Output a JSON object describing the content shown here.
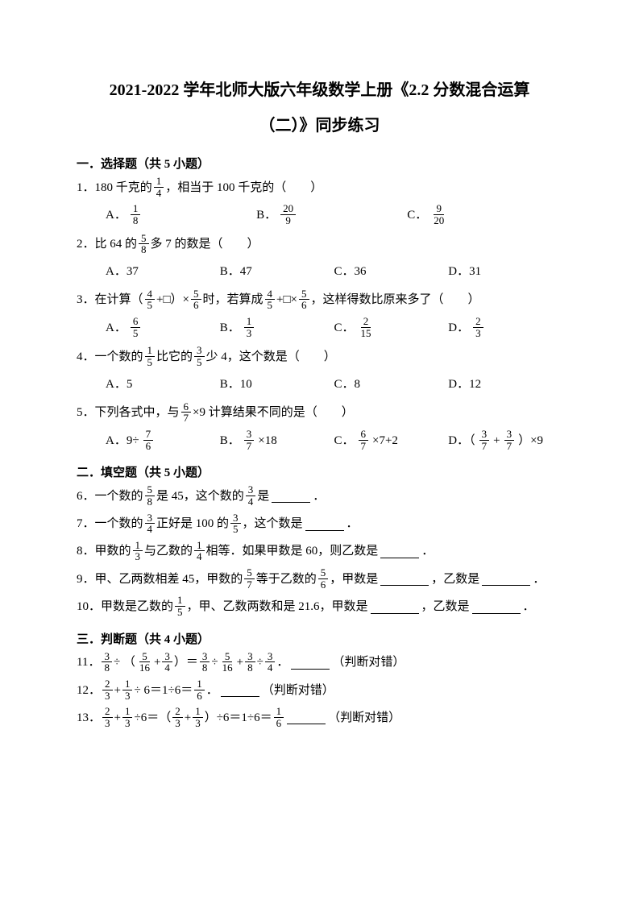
{
  "title_line1": "2021-2022 学年北师大版六年级数学上册《2.2 分数混合运算",
  "title_line2": "（二）》同步练习",
  "section1": "一．选择题（共 5 小题）",
  "section2": "二．填空题（共 5 小题）",
  "section3": "三．判断题（共 4 小题）",
  "judge_label": "（判断对错）",
  "q1": {
    "pre": "1．180 千克的",
    "f": {
      "n": "1",
      "d": "4"
    },
    "post": "，相当于 100 千克的（　　）",
    "A_f": {
      "n": "1",
      "d": "8"
    },
    "B_f": {
      "n": "20",
      "d": "9"
    },
    "C_f": {
      "n": "9",
      "d": "20"
    },
    "A": "A．",
    "B": "B．",
    "C": "C．"
  },
  "q2": {
    "pre": "2．比 64 的",
    "f": {
      "n": "5",
      "d": "8"
    },
    "post": "多 7 的数是（　　）",
    "A": "A．37",
    "B": "B．47",
    "C": "C．36",
    "D": "D．31"
  },
  "q3": {
    "pre": "3．在计算（",
    "f1": {
      "n": "4",
      "d": "5"
    },
    "mid1": "+□）×",
    "f2": {
      "n": "5",
      "d": "6"
    },
    "mid2": "时，若算成",
    "f3": {
      "n": "4",
      "d": "5"
    },
    "mid3": "+□×",
    "f4": {
      "n": "5",
      "d": "6"
    },
    "post": "，这样得数比原来多了（　　）",
    "A_f": {
      "n": "6",
      "d": "5"
    },
    "B_f": {
      "n": "1",
      "d": "3"
    },
    "C_f": {
      "n": "2",
      "d": "15"
    },
    "D_f": {
      "n": "2",
      "d": "3"
    },
    "A": "A．",
    "B": "B．",
    "C": "C．",
    "D": "D．"
  },
  "q4": {
    "pre": "4．一个数的",
    "f1": {
      "n": "1",
      "d": "5"
    },
    "mid": "比它的",
    "f2": {
      "n": "3",
      "d": "5"
    },
    "post": "少 4，这个数是（　　）",
    "A": "A．5",
    "B": "B．10",
    "C": "C．8",
    "D": "D．12"
  },
  "q5": {
    "pre": "5．下列各式中，与",
    "f": {
      "n": "6",
      "d": "7"
    },
    "post": "×9 计算结果不同的是（　　）",
    "A_pre": "A．9÷",
    "A_f": {
      "n": "7",
      "d": "6"
    },
    "B_pre": "B．",
    "B_f": {
      "n": "3",
      "d": "7"
    },
    "B_post": "×18",
    "C_pre": "C．",
    "C_f": {
      "n": "6",
      "d": "7"
    },
    "C_post": "×7+2",
    "D_pre": "D．（",
    "D_f1": {
      "n": "3",
      "d": "7"
    },
    "D_mid": " + ",
    "D_f2": {
      "n": "3",
      "d": "7"
    },
    "D_post": "）×9"
  },
  "q6": {
    "pre": "6．一个数的",
    "f1": {
      "n": "5",
      "d": "8"
    },
    "mid": "是 45，这个数的",
    "f2": {
      "n": "3",
      "d": "4"
    },
    "post": "是",
    "dot": "．"
  },
  "q7": {
    "pre": "7．一个数的",
    "f1": {
      "n": "3",
      "d": "4"
    },
    "mid": "正好是 100 的",
    "f2": {
      "n": "3",
      "d": "5"
    },
    "post": "，这个数是",
    "dot": "．"
  },
  "q8": {
    "pre": "8．甲数的",
    "f1": {
      "n": "1",
      "d": "3"
    },
    "mid1": "与乙数的",
    "f2": {
      "n": "1",
      "d": "4"
    },
    "mid2": "相等．如果甲数是 60，则乙数是",
    "dot": "．"
  },
  "q9": {
    "pre": "9．甲、乙两数相差 45，甲数的",
    "f1": {
      "n": "5",
      "d": "7"
    },
    "mid1": "等于乙数的",
    "f2": {
      "n": "5",
      "d": "6"
    },
    "mid2": "，甲数是",
    "mid3": "，乙数是",
    "dot": "．"
  },
  "q10": {
    "pre": "10．甲数是乙数的",
    "f": {
      "n": "1",
      "d": "5"
    },
    "mid1": "，甲、乙数两数和是 21.6，甲数是",
    "mid2": "，乙数是",
    "dot": "．"
  },
  "q11": {
    "pre": "11．",
    "f1": {
      "n": "3",
      "d": "8"
    },
    "s1": " ÷ （",
    "f2": {
      "n": "5",
      "d": "16"
    },
    "s2": "+",
    "f3": {
      "n": "3",
      "d": "4"
    },
    "s3": "）＝",
    "f4": {
      "n": "3",
      "d": "8"
    },
    "s4": " ÷ ",
    "f5": {
      "n": "5",
      "d": "16"
    },
    "s5": " + ",
    "f6": {
      "n": "3",
      "d": "8"
    },
    "s6": " ÷ ",
    "f7": {
      "n": "3",
      "d": "4"
    },
    "dot": "．"
  },
  "q12": {
    "pre": "12．",
    "f1": {
      "n": "2",
      "d": "3"
    },
    "s1": " + ",
    "f2": {
      "n": "1",
      "d": "3"
    },
    "s2": " ÷ 6＝1÷6＝",
    "f3": {
      "n": "1",
      "d": "6"
    },
    "dot": "．"
  },
  "q13": {
    "pre": "13．",
    "f1": {
      "n": "2",
      "d": "3"
    },
    "s1": " + ",
    "f2": {
      "n": "1",
      "d": "3"
    },
    "s2": " ÷6＝（",
    "f3": {
      "n": "2",
      "d": "3"
    },
    "s3": "+",
    "f4": {
      "n": "1",
      "d": "3"
    },
    "s4": "）÷6＝1÷6＝",
    "f5": {
      "n": "1",
      "d": "6"
    }
  }
}
